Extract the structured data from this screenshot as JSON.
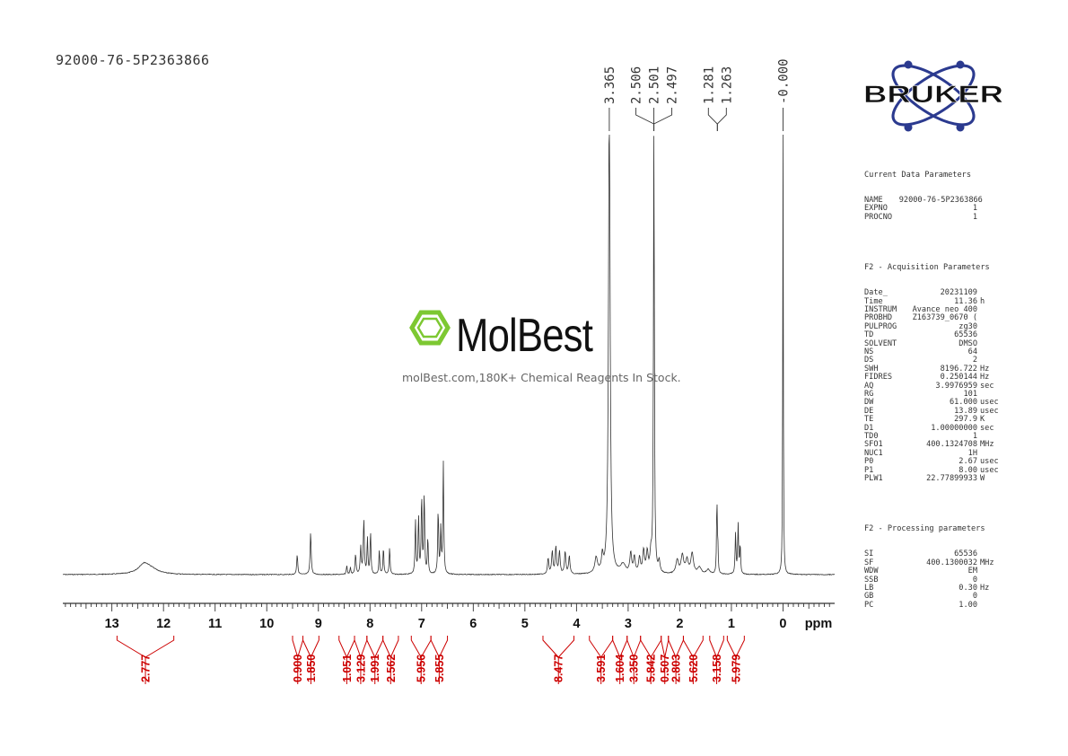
{
  "sample_id": "92000-76-5P2363866",
  "watermark": {
    "brand": "MolBest",
    "tagline": "molBest.com,180K+ Chemical Reagents In Stock."
  },
  "logo": {
    "text": "BRUKER",
    "icon": "atom-orbit-icon"
  },
  "colors": {
    "spectrum": "#333333",
    "integral": "#cc0000",
    "brand_green": "#7dc832",
    "logo_blue": "#2b3a8f"
  },
  "chart_data": {
    "type": "line",
    "title": "",
    "xlabel": "ppm",
    "ylabel": "",
    "xlim": [
      13.95,
      -1.0
    ],
    "x_ticks": [
      13,
      12,
      11,
      10,
      9,
      8,
      7,
      6,
      5,
      4,
      3,
      2,
      1,
      0
    ],
    "series": [
      {
        "peaks": [
          {
            "ppm": 12.38,
            "h": 0.04,
            "w": 0.13
          },
          {
            "ppm": 12.25,
            "h": 0.02,
            "w": 0.18
          },
          {
            "ppm": 9.41,
            "h": 0.09,
            "w": 0.012
          },
          {
            "ppm": 9.15,
            "h": 0.19,
            "w": 0.012
          },
          {
            "ppm": 8.45,
            "h": 0.04,
            "w": 0.01
          },
          {
            "ppm": 8.38,
            "h": 0.03,
            "w": 0.01
          },
          {
            "ppm": 8.28,
            "h": 0.09,
            "w": 0.012
          },
          {
            "ppm": 8.18,
            "h": 0.12,
            "w": 0.012
          },
          {
            "ppm": 8.12,
            "h": 0.24,
            "w": 0.012
          },
          {
            "ppm": 8.05,
            "h": 0.16,
            "w": 0.01
          },
          {
            "ppm": 7.99,
            "h": 0.19,
            "w": 0.01
          },
          {
            "ppm": 7.82,
            "h": 0.11,
            "w": 0.01
          },
          {
            "ppm": 7.74,
            "h": 0.12,
            "w": 0.01
          },
          {
            "ppm": 7.62,
            "h": 0.12,
            "w": 0.01
          },
          {
            "ppm": 7.12,
            "h": 0.24,
            "w": 0.01
          },
          {
            "ppm": 7.06,
            "h": 0.26,
            "w": 0.01
          },
          {
            "ppm": 7.0,
            "h": 0.35,
            "w": 0.01
          },
          {
            "ppm": 6.95,
            "h": 0.36,
            "w": 0.01
          },
          {
            "ppm": 6.88,
            "h": 0.16,
            "w": 0.01
          },
          {
            "ppm": 6.68,
            "h": 0.29,
            "w": 0.01
          },
          {
            "ppm": 6.63,
            "h": 0.2,
            "w": 0.01
          },
          {
            "ppm": 6.58,
            "h": 0.5,
            "w": 0.01
          },
          {
            "ppm": 4.55,
            "h": 0.07,
            "w": 0.015
          },
          {
            "ppm": 4.47,
            "h": 0.1,
            "w": 0.015
          },
          {
            "ppm": 4.4,
            "h": 0.12,
            "w": 0.015
          },
          {
            "ppm": 4.33,
            "h": 0.1,
            "w": 0.015
          },
          {
            "ppm": 4.22,
            "h": 0.1,
            "w": 0.015
          },
          {
            "ppm": 4.14,
            "h": 0.08,
            "w": 0.015
          },
          {
            "ppm": 3.62,
            "h": 0.07,
            "w": 0.03
          },
          {
            "ppm": 3.5,
            "h": 0.07,
            "w": 0.02
          },
          {
            "ppm": 3.365,
            "h": 2.2,
            "w": 0.018
          },
          {
            "ppm": 3.1,
            "h": 0.04,
            "w": 0.06
          },
          {
            "ppm": 2.95,
            "h": 0.09,
            "w": 0.02
          },
          {
            "ppm": 2.88,
            "h": 0.07,
            "w": 0.02
          },
          {
            "ppm": 2.78,
            "h": 0.07,
            "w": 0.02
          },
          {
            "ppm": 2.7,
            "h": 0.1,
            "w": 0.02
          },
          {
            "ppm": 2.63,
            "h": 0.09,
            "w": 0.02
          },
          {
            "ppm": 2.56,
            "h": 0.08,
            "w": 0.02
          },
          {
            "ppm": 2.501,
            "h": 2.0,
            "w": 0.01
          },
          {
            "ppm": 2.4,
            "h": 0.05,
            "w": 0.02
          },
          {
            "ppm": 2.05,
            "h": 0.06,
            "w": 0.03
          },
          {
            "ppm": 1.95,
            "h": 0.08,
            "w": 0.03
          },
          {
            "ppm": 1.86,
            "h": 0.06,
            "w": 0.03
          },
          {
            "ppm": 1.76,
            "h": 0.09,
            "w": 0.03
          },
          {
            "ppm": 1.62,
            "h": 0.03,
            "w": 0.04
          },
          {
            "ppm": 1.45,
            "h": 0.02,
            "w": 0.04
          },
          {
            "ppm": 1.281,
            "h": 0.34,
            "w": 0.008
          },
          {
            "ppm": 1.263,
            "h": 0.12,
            "w": 0.008
          },
          {
            "ppm": 0.92,
            "h": 0.18,
            "w": 0.01
          },
          {
            "ppm": 0.87,
            "h": 0.22,
            "w": 0.01
          },
          {
            "ppm": 0.83,
            "h": 0.13,
            "w": 0.01
          },
          {
            "ppm": 0.0,
            "h": 2.2,
            "w": 0.006
          }
        ]
      }
    ],
    "peak_labels": [
      {
        "group": [
          3.365
        ],
        "labels": [
          "3.365"
        ]
      },
      {
        "group": [
          2.506,
          2.501,
          2.497
        ],
        "labels": [
          "2.506",
          "2.501",
          "2.497"
        ]
      },
      {
        "group": [
          1.281,
          1.263
        ],
        "labels": [
          "1.281",
          "1.263"
        ]
      },
      {
        "group": [
          0.0
        ],
        "labels": [
          "-0.000"
        ]
      }
    ],
    "integrals": [
      {
        "from": 12.9,
        "to": 11.8,
        "value": "2.777"
      },
      {
        "from": 9.5,
        "to": 9.3,
        "value": "0.900"
      },
      {
        "from": 9.3,
        "to": 8.99,
        "value": "1.850"
      },
      {
        "from": 8.6,
        "to": 8.3,
        "value": "1.051"
      },
      {
        "from": 8.3,
        "to": 8.06,
        "value": "3.129"
      },
      {
        "from": 8.06,
        "to": 7.75,
        "value": "1.991"
      },
      {
        "from": 7.75,
        "to": 7.45,
        "value": "2.562"
      },
      {
        "from": 7.2,
        "to": 6.82,
        "value": "5.956"
      },
      {
        "from": 6.82,
        "to": 6.5,
        "value": "5.855"
      },
      {
        "from": 4.65,
        "to": 4.05,
        "value": "8.477"
      },
      {
        "from": 3.75,
        "to": 3.3,
        "value": "3.591"
      },
      {
        "from": 3.3,
        "to": 3.02,
        "value": "1.604"
      },
      {
        "from": 3.02,
        "to": 2.76,
        "value": "3.350"
      },
      {
        "from": 2.76,
        "to": 2.36,
        "value": "5.842"
      },
      {
        "from": 2.36,
        "to": 2.22,
        "value": "0.507"
      },
      {
        "from": 2.22,
        "to": 1.93,
        "value": "2.803"
      },
      {
        "from": 1.93,
        "to": 1.55,
        "value": "5.620"
      },
      {
        "from": 1.42,
        "to": 1.15,
        "value": "3.158"
      },
      {
        "from": 1.08,
        "to": 0.75,
        "value": "5.979"
      }
    ]
  },
  "params": {
    "section1": {
      "header": "Current Data Parameters",
      "rows": [
        {
          "k": "NAME",
          "v": "92000-76-5P2363866",
          "u": ""
        },
        {
          "k": "EXPNO",
          "v": "1",
          "u": ""
        },
        {
          "k": "PROCNO",
          "v": "1",
          "u": ""
        }
      ]
    },
    "section2": {
      "header": "F2 - Acquisition Parameters",
      "rows": [
        {
          "k": "Date_",
          "v": "20231109",
          "u": ""
        },
        {
          "k": "Time",
          "v": "11.36",
          "u": "h"
        },
        {
          "k": "INSTRUM",
          "v": "Avance neo 400",
          "u": ""
        },
        {
          "k": "PROBHD",
          "v": "Z163739_0670 (",
          "u": ""
        },
        {
          "k": "PULPROG",
          "v": "zg30",
          "u": ""
        },
        {
          "k": "TD",
          "v": "65536",
          "u": ""
        },
        {
          "k": "SOLVENT",
          "v": "DMSO",
          "u": ""
        },
        {
          "k": "NS",
          "v": "64",
          "u": ""
        },
        {
          "k": "DS",
          "v": "2",
          "u": ""
        },
        {
          "k": "SWH",
          "v": "8196.722",
          "u": "Hz"
        },
        {
          "k": "FIDRES",
          "v": "0.250144",
          "u": "Hz"
        },
        {
          "k": "AQ",
          "v": "3.9976959",
          "u": "sec"
        },
        {
          "k": "RG",
          "v": "101",
          "u": ""
        },
        {
          "k": "DW",
          "v": "61.000",
          "u": "usec"
        },
        {
          "k": "DE",
          "v": "13.89",
          "u": "usec"
        },
        {
          "k": "TE",
          "v": "297.9",
          "u": "K"
        },
        {
          "k": "D1",
          "v": "1.00000000",
          "u": "sec"
        },
        {
          "k": "TD0",
          "v": "1",
          "u": ""
        },
        {
          "k": "SFO1",
          "v": "400.1324708",
          "u": "MHz"
        },
        {
          "k": "NUC1",
          "v": "1H",
          "u": ""
        },
        {
          "k": "P0",
          "v": "2.67",
          "u": "usec"
        },
        {
          "k": "P1",
          "v": "8.00",
          "u": "usec"
        },
        {
          "k": "PLW1",
          "v": "22.77899933",
          "u": "W"
        }
      ]
    },
    "section3": {
      "header": "F2 - Processing parameters",
      "rows": [
        {
          "k": "SI",
          "v": "65536",
          "u": ""
        },
        {
          "k": "SF",
          "v": "400.1300032",
          "u": "MHz"
        },
        {
          "k": "WDW",
          "v": "EM",
          "u": ""
        },
        {
          "k": "SSB",
          "v": "0",
          "u": ""
        },
        {
          "k": "LB",
          "v": "0.30",
          "u": "Hz"
        },
        {
          "k": "GB",
          "v": "0",
          "u": ""
        },
        {
          "k": "PC",
          "v": "1.00",
          "u": ""
        }
      ]
    }
  }
}
